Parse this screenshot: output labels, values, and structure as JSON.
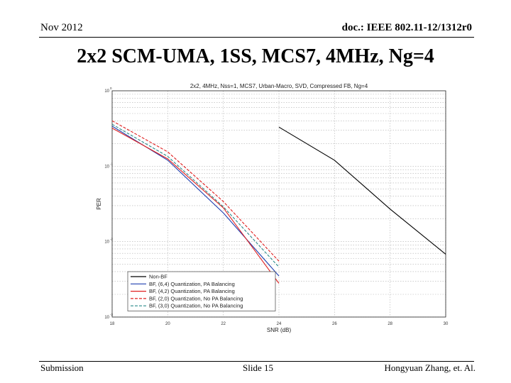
{
  "header": {
    "left": "Nov 2012",
    "right": "doc.: IEEE 802.11-12/1312r0"
  },
  "slide_title": "2x2 SCM-UMA, 1SS, MCS7, 4MHz, Ng=4",
  "footer": {
    "left": "Submission",
    "center": "Slide 15",
    "right": "Hongyuan Zhang, et. Al."
  },
  "chart_data": {
    "type": "line",
    "title": "2x2, 4MHz, Nss=1, MCS7, Urban-Macro, SVD, Compressed FB, Ng=4",
    "xlabel": "SNR (dB)",
    "ylabel": "PER",
    "xlim": [
      18,
      30
    ],
    "ylim": [
      0.001,
      1
    ],
    "yscale": "log",
    "grid": true,
    "x_ticks": [
      "18",
      "20",
      "22",
      "24",
      "26",
      "28",
      "30"
    ],
    "y_ticks": [
      {
        "base": "10",
        "exp": "0",
        "value": 1
      },
      {
        "base": "10",
        "exp": "-1",
        "value": 0.1
      },
      {
        "base": "10",
        "exp": "-2",
        "value": 0.01
      },
      {
        "base": "10",
        "exp": "-3",
        "value": 0.001
      }
    ],
    "legend_position": "bottom-left",
    "series": [
      {
        "name": "Non-BF",
        "color": "#000000",
        "dash": "solid",
        "x": [
          24,
          26,
          28,
          30
        ],
        "y": [
          0.33,
          0.12,
          0.027,
          0.0068
        ]
      },
      {
        "name": "BF, (6,4) Quantization, PA Balancing",
        "color": "#1f3fb0",
        "dash": "solid",
        "x": [
          18,
          20,
          22,
          24
        ],
        "y": [
          0.34,
          0.12,
          0.024,
          0.0035
        ]
      },
      {
        "name": "BF, (4,2) Quantization, PA Balancing",
        "color": "#e02020",
        "dash": "solid",
        "x": [
          18,
          20,
          22,
          24
        ],
        "y": [
          0.32,
          0.125,
          0.028,
          0.0028
        ]
      },
      {
        "name": "BF, (2,0) Quantization, No PA Balancing",
        "color": "#e02020",
        "dash": "dashed",
        "x": [
          18,
          20,
          22,
          24
        ],
        "y": [
          0.4,
          0.155,
          0.034,
          0.0055
        ]
      },
      {
        "name": "BF, (3,0) Quantization, No PA Balancing",
        "color": "#2a8a8a",
        "dash": "dashed",
        "x": [
          18,
          20,
          22,
          24
        ],
        "y": [
          0.36,
          0.135,
          0.029,
          0.0046
        ]
      }
    ]
  }
}
